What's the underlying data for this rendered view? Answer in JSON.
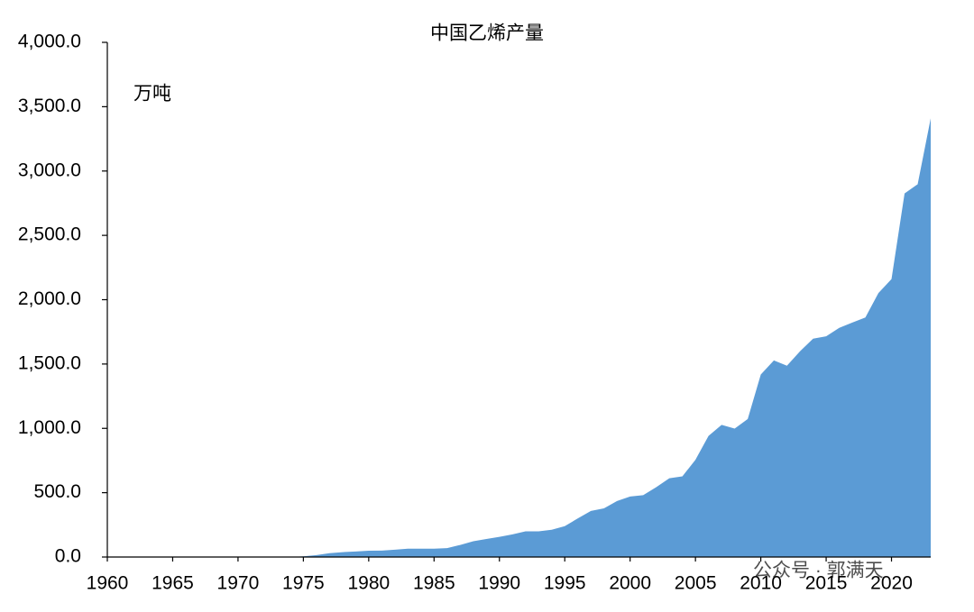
{
  "chart_data": {
    "type": "area",
    "title": "中国乙烯产量",
    "unit_label": "万吨",
    "watermark": "公众号 · 郭满天",
    "x": [
      1960,
      1961,
      1962,
      1963,
      1964,
      1965,
      1966,
      1967,
      1968,
      1969,
      1970,
      1971,
      1972,
      1973,
      1974,
      1975,
      1976,
      1977,
      1978,
      1979,
      1980,
      1981,
      1982,
      1983,
      1984,
      1985,
      1986,
      1987,
      1988,
      1989,
      1990,
      1991,
      1992,
      1993,
      1994,
      1995,
      1996,
      1997,
      1998,
      1999,
      2000,
      2001,
      2002,
      2003,
      2004,
      2005,
      2006,
      2007,
      2008,
      2009,
      2010,
      2011,
      2012,
      2013,
      2014,
      2015,
      2016,
      2017,
      2018,
      2019,
      2020,
      2021,
      2022,
      2023
    ],
    "values": [
      0,
      0,
      0,
      0,
      0,
      0,
      0,
      0,
      0,
      0,
      0,
      0,
      0,
      0,
      0,
      5,
      15,
      30,
      38,
      43,
      49,
      50,
      57,
      65,
      65,
      65,
      69,
      94,
      123,
      140,
      157,
      176,
      200,
      200,
      212,
      240,
      300,
      358,
      378,
      435,
      470,
      481,
      543,
      612,
      627,
      756,
      941,
      1027,
      998,
      1073,
      1419,
      1528,
      1487,
      1599,
      1697,
      1715,
      1781,
      1822,
      1862,
      2052,
      2160,
      2826,
      2897,
      3410
    ],
    "color": "#5b9bd5",
    "xlim": [
      1960,
      2023
    ],
    "xticks": [
      1960,
      1965,
      1970,
      1975,
      1980,
      1985,
      1990,
      1995,
      2000,
      2005,
      2010,
      2015,
      2020
    ],
    "ylim": [
      0,
      4000
    ],
    "yticks": [
      {
        "value": 0,
        "label": "0.0"
      },
      {
        "value": 500,
        "label": "500.0"
      },
      {
        "value": 1000,
        "label": "1,000.0"
      },
      {
        "value": 1500,
        "label": "1,500.0"
      },
      {
        "value": 2000,
        "label": "2,000.0"
      },
      {
        "value": 2500,
        "label": "2,500.0"
      },
      {
        "value": 3000,
        "label": "3,000.0"
      },
      {
        "value": 3500,
        "label": "3,500.0"
      },
      {
        "value": 4000,
        "label": "4,000.0"
      }
    ],
    "grid": false
  }
}
